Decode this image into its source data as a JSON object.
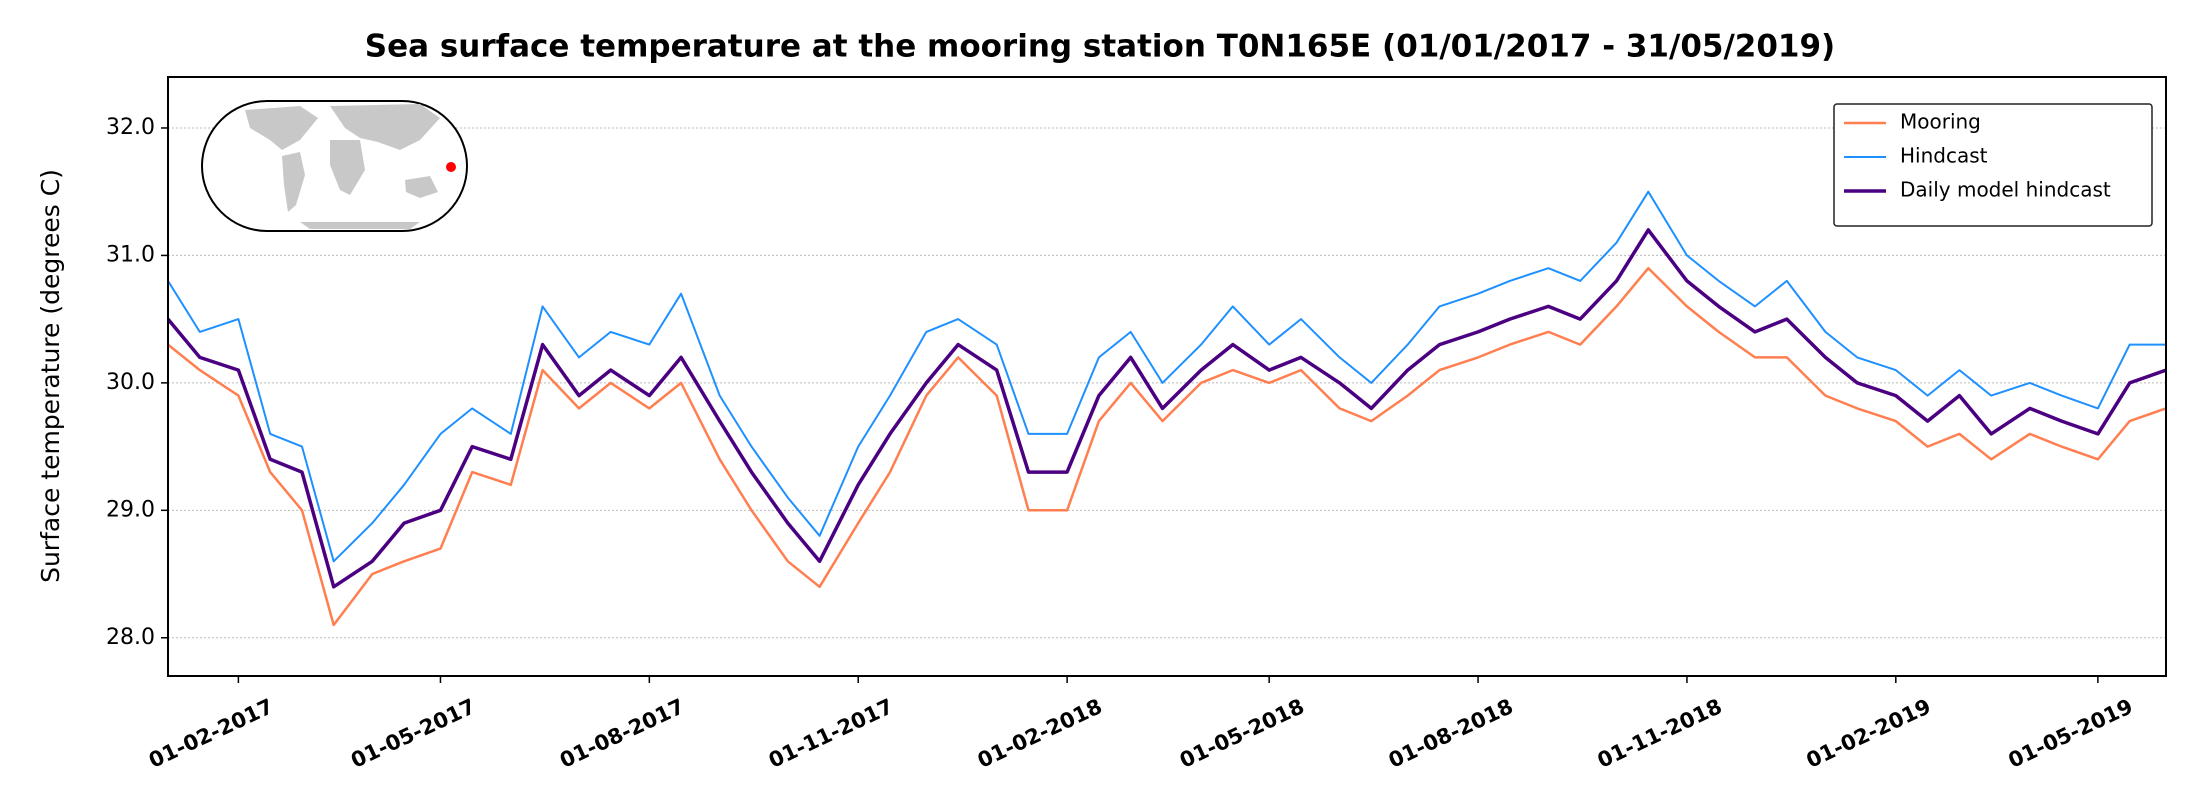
{
  "chart_data": {
    "type": "line",
    "title": "Sea surface temperature at the mooring station T0N165E (01/01/2017 - 31/05/2019)",
    "ylabel": "Surface temperature (degrees C)",
    "x": [
      "2017-01-01",
      "2017-01-15",
      "2017-02-01",
      "2017-02-15",
      "2017-03-01",
      "2017-03-15",
      "2017-04-01",
      "2017-04-15",
      "2017-05-01",
      "2017-05-15",
      "2017-06-01",
      "2017-06-15",
      "2017-07-01",
      "2017-07-15",
      "2017-08-01",
      "2017-08-15",
      "2017-09-01",
      "2017-09-15",
      "2017-10-01",
      "2017-10-15",
      "2017-11-01",
      "2017-11-15",
      "2017-12-01",
      "2017-12-15",
      "2018-01-01",
      "2018-01-15",
      "2018-02-01",
      "2018-02-15",
      "2018-03-01",
      "2018-03-15",
      "2018-04-01",
      "2018-04-15",
      "2018-05-01",
      "2018-05-15",
      "2018-06-01",
      "2018-06-15",
      "2018-07-01",
      "2018-07-15",
      "2018-08-01",
      "2018-08-15",
      "2018-09-01",
      "2018-09-15",
      "2018-10-01",
      "2018-10-15",
      "2018-11-01",
      "2018-11-15",
      "2018-12-01",
      "2018-12-15",
      "2019-01-01",
      "2019-01-15",
      "2019-02-01",
      "2019-02-15",
      "2019-03-01",
      "2019-03-15",
      "2019-04-01",
      "2019-04-15",
      "2019-05-01",
      "2019-05-15",
      "2019-05-31"
    ],
    "series": [
      {
        "name": "Mooring",
        "color": "#ff7f50",
        "width": 2.5,
        "values": [
          30.3,
          30.1,
          29.9,
          29.3,
          29.0,
          28.1,
          28.5,
          28.6,
          28.7,
          29.3,
          29.2,
          30.1,
          29.8,
          30.0,
          29.8,
          30.0,
          29.4,
          29.0,
          28.6,
          28.4,
          28.9,
          29.3,
          29.9,
          30.2,
          29.9,
          29.0,
          29.0,
          29.7,
          30.0,
          29.7,
          30.0,
          30.1,
          30.0,
          30.1,
          29.8,
          29.7,
          29.9,
          30.1,
          30.2,
          30.3,
          30.4,
          30.3,
          30.6,
          30.9,
          30.6,
          30.4,
          30.2,
          30.2,
          29.9,
          29.8,
          29.7,
          29.5,
          29.6,
          29.4,
          29.6,
          29.5,
          29.4,
          29.7,
          29.8
        ]
      },
      {
        "name": "Hindcast",
        "color": "#1e90ff",
        "width": 2,
        "values": [
          30.8,
          30.4,
          30.5,
          29.6,
          29.5,
          28.6,
          28.9,
          29.2,
          29.6,
          29.8,
          29.6,
          30.6,
          30.2,
          30.4,
          30.3,
          30.7,
          29.9,
          29.5,
          29.1,
          28.8,
          29.5,
          29.9,
          30.4,
          30.5,
          30.3,
          29.6,
          29.6,
          30.2,
          30.4,
          30.0,
          30.3,
          30.6,
          30.3,
          30.5,
          30.2,
          30.0,
          30.3,
          30.6,
          30.7,
          30.8,
          30.9,
          30.8,
          31.1,
          31.5,
          31.0,
          30.8,
          30.6,
          30.8,
          30.4,
          30.2,
          30.1,
          29.9,
          30.1,
          29.9,
          30.0,
          29.9,
          29.8,
          30.3,
          30.3
        ]
      },
      {
        "name": "Daily model hindcast",
        "color": "#4b0082",
        "width": 3.5,
        "values": [
          30.5,
          30.2,
          30.1,
          29.4,
          29.3,
          28.4,
          28.6,
          28.9,
          29.0,
          29.5,
          29.4,
          30.3,
          29.9,
          30.1,
          29.9,
          30.2,
          29.7,
          29.3,
          28.9,
          28.6,
          29.2,
          29.6,
          30.0,
          30.3,
          30.1,
          29.3,
          29.3,
          29.9,
          30.2,
          29.8,
          30.1,
          30.3,
          30.1,
          30.2,
          30.0,
          29.8,
          30.1,
          30.3,
          30.4,
          30.5,
          30.6,
          30.5,
          30.8,
          31.2,
          30.8,
          30.6,
          30.4,
          30.5,
          30.2,
          30.0,
          29.9,
          29.7,
          29.9,
          29.6,
          29.8,
          29.7,
          29.6,
          30.0,
          30.1
        ]
      }
    ],
    "xlim": [
      "2017-01-01",
      "2019-05-31"
    ],
    "xticks": [
      {
        "value": "2017-02-01",
        "label": "01-02-2017"
      },
      {
        "value": "2017-05-01",
        "label": "01-05-2017"
      },
      {
        "value": "2017-08-01",
        "label": "01-08-2017"
      },
      {
        "value": "2017-11-01",
        "label": "01-11-2017"
      },
      {
        "value": "2018-02-01",
        "label": "01-02-2018"
      },
      {
        "value": "2018-05-01",
        "label": "01-05-2018"
      },
      {
        "value": "2018-08-01",
        "label": "01-08-2018"
      },
      {
        "value": "2018-11-01",
        "label": "01-11-2018"
      },
      {
        "value": "2019-02-01",
        "label": "01-02-2019"
      },
      {
        "value": "2019-05-01",
        "label": "01-05-2019"
      }
    ],
    "ylim": [
      27.7,
      32.4
    ],
    "yticks": [
      {
        "value": 28,
        "label": "28.0"
      },
      {
        "value": 29,
        "label": "29.0"
      },
      {
        "value": 30,
        "label": "30.0"
      },
      {
        "value": 31,
        "label": "31.0"
      },
      {
        "value": 32,
        "label": "32.0"
      }
    ],
    "grid": true,
    "legend": "upper right"
  }
}
